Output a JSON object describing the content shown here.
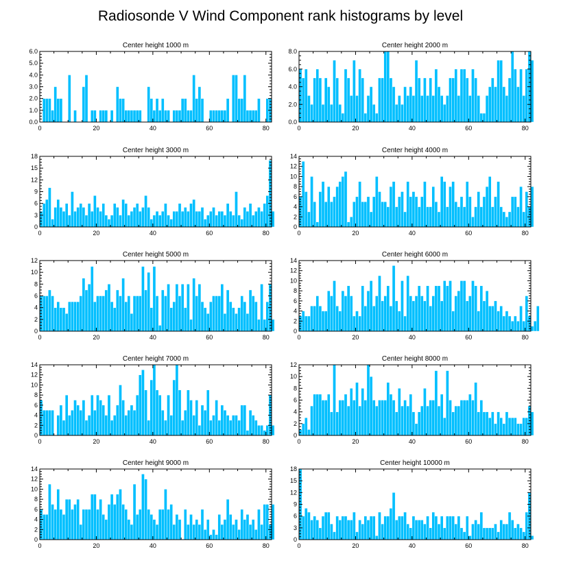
{
  "figure": {
    "title": "Radiosonde V Wind Component rank histograms by level"
  },
  "chart_data": [
    {
      "type": "bar",
      "title": "Center height 1000 m",
      "x_start": 0,
      "xlim": [
        0,
        82
      ],
      "xticks": [
        0,
        20,
        40,
        60,
        80
      ],
      "ylim": [
        0,
        6
      ],
      "yticks": [
        "0.0",
        "1.0",
        "2.0",
        "3.0",
        "4.0",
        "5.0",
        "6.0"
      ],
      "values": [
        0,
        2,
        2,
        2,
        1,
        3,
        2,
        2,
        0,
        0,
        4,
        0,
        1,
        0,
        0,
        3,
        4,
        0,
        1,
        1,
        0,
        1,
        1,
        1,
        0,
        1,
        0,
        3,
        2,
        2,
        1,
        1,
        1,
        1,
        1,
        1,
        0,
        0,
        3,
        2,
        1,
        2,
        1,
        2,
        1,
        1,
        0,
        1,
        1,
        1,
        2,
        2,
        1,
        1,
        4,
        2,
        3,
        2,
        0,
        0,
        1,
        1,
        1,
        1,
        1,
        1,
        2,
        0,
        4,
        4,
        2,
        2,
        4,
        1,
        1,
        1,
        1,
        2,
        0,
        0,
        2,
        2
      ]
    },
    {
      "type": "bar",
      "title": "Center height 2000 m",
      "x_start": 0,
      "xlim": [
        0,
        82
      ],
      "xticks": [
        0,
        20,
        40,
        60,
        80
      ],
      "ylim": [
        0,
        8
      ],
      "yticks": [
        "0.0",
        "2.0",
        "4.0",
        "6.0",
        "8.0"
      ],
      "values": [
        6,
        5,
        6,
        3,
        2,
        5,
        6,
        5,
        2,
        5,
        4,
        2,
        7,
        5,
        2,
        1,
        6,
        5,
        3,
        7,
        3,
        6,
        5,
        1,
        3,
        4,
        2,
        1,
        5,
        5,
        8,
        8,
        5,
        4,
        2,
        3,
        2,
        4,
        3,
        4,
        3,
        7,
        5,
        3,
        5,
        3,
        5,
        3,
        6,
        4,
        3,
        2,
        3,
        5,
        5,
        6,
        3,
        6,
        6,
        5,
        3,
        6,
        5,
        3,
        1,
        1,
        3,
        4,
        5,
        4,
        7,
        7,
        4,
        3,
        5,
        8,
        6,
        4,
        6,
        3,
        6,
        8,
        7
      ]
    },
    {
      "type": "bar",
      "title": "Center height 3000 m",
      "x_start": 0,
      "xlim": [
        0,
        82
      ],
      "xticks": [
        0,
        20,
        40,
        60,
        80
      ],
      "ylim": [
        0,
        18
      ],
      "yticks": [
        "0",
        "3",
        "6",
        "9",
        "12",
        "15",
        "18"
      ],
      "values": [
        4,
        6,
        7,
        10,
        2,
        5,
        7,
        5,
        4,
        6,
        3,
        9,
        4,
        5,
        6,
        5,
        3,
        6,
        4,
        8,
        5,
        4,
        6,
        3,
        2,
        3,
        6,
        5,
        3,
        7,
        6,
        3,
        4,
        5,
        6,
        4,
        5,
        8,
        5,
        2,
        3,
        4,
        3,
        4,
        6,
        3,
        2,
        4,
        4,
        6,
        4,
        5,
        4,
        6,
        7,
        4,
        4,
        5,
        2,
        3,
        4,
        5,
        3,
        4,
        4,
        3,
        6,
        4,
        3,
        9,
        3,
        2,
        5,
        4,
        6,
        3,
        4,
        5,
        4,
        6,
        8,
        17,
        4
      ]
    },
    {
      "type": "bar",
      "title": "Center height 4000 m",
      "x_start": 0,
      "xlim": [
        0,
        82
      ],
      "xticks": [
        0,
        20,
        40,
        60,
        80
      ],
      "ylim": [
        0,
        14
      ],
      "yticks": [
        "0",
        "2",
        "4",
        "6",
        "8",
        "10",
        "12",
        "14"
      ],
      "values": [
        6,
        13,
        7,
        3,
        10,
        5,
        1,
        7,
        9,
        5,
        8,
        5,
        6,
        8,
        9,
        10,
        11,
        1,
        2,
        5,
        6,
        9,
        5,
        5,
        6,
        3,
        6,
        10,
        7,
        5,
        5,
        4,
        8,
        9,
        4,
        6,
        7,
        3,
        9,
        6,
        7,
        6,
        4,
        6,
        9,
        4,
        4,
        8,
        5,
        3,
        10,
        9,
        4,
        8,
        9,
        5,
        4,
        6,
        4,
        9,
        6,
        2,
        4,
        7,
        4,
        6,
        8,
        10,
        4,
        6,
        9,
        4,
        3,
        2,
        3,
        6,
        6,
        4,
        8,
        3,
        7,
        4,
        8
      ]
    },
    {
      "type": "bar",
      "title": "Center height 5000 m",
      "x_start": 0,
      "xlim": [
        0,
        82
      ],
      "xticks": [
        0,
        20,
        40,
        60,
        80
      ],
      "ylim": [
        0,
        12
      ],
      "yticks": [
        "0",
        "2",
        "4",
        "6",
        "8",
        "10",
        "12"
      ],
      "values": [
        6,
        6,
        6,
        7,
        6,
        4,
        5,
        4,
        4,
        3,
        5,
        5,
        5,
        5,
        6,
        9,
        7,
        8,
        11,
        5,
        6,
        6,
        6,
        7,
        8,
        5,
        4,
        7,
        6,
        9,
        5,
        6,
        3,
        6,
        6,
        6,
        11,
        7,
        10,
        4,
        11,
        6,
        1,
        7,
        6,
        8,
        4,
        5,
        8,
        6,
        8,
        4,
        8,
        2,
        9,
        6,
        8,
        5,
        4,
        3,
        5,
        6,
        6,
        6,
        8,
        3,
        7,
        5,
        4,
        3,
        4,
        6,
        5,
        3,
        7,
        6,
        5,
        2,
        8,
        2,
        5,
        8,
        2
      ]
    },
    {
      "type": "bar",
      "title": "Center height 6000 m",
      "x_start": 0,
      "xlim": [
        0,
        82
      ],
      "xticks": [
        0,
        20,
        40,
        60,
        80
      ],
      "ylim": [
        0,
        14
      ],
      "yticks": [
        "0",
        "2",
        "4",
        "6",
        "8",
        "10",
        "12",
        "14"
      ],
      "values": [
        3,
        4,
        3,
        3,
        5,
        5,
        7,
        5,
        4,
        4,
        8,
        7,
        10,
        5,
        4,
        8,
        7,
        9,
        7,
        3,
        4,
        3,
        9,
        5,
        8,
        10,
        5,
        7,
        11,
        6,
        7,
        9,
        5,
        13,
        6,
        4,
        10,
        3,
        11,
        7,
        6,
        7,
        9,
        7,
        6,
        9,
        5,
        7,
        9,
        9,
        6,
        10,
        9,
        10,
        4,
        7,
        8,
        10,
        10,
        6,
        7,
        10,
        9,
        4,
        9,
        6,
        8,
        5,
        5,
        6,
        4,
        5,
        3,
        4,
        3,
        2,
        3,
        2,
        5,
        2,
        7,
        3,
        1,
        2,
        5
      ]
    },
    {
      "type": "bar",
      "title": "Center height 7000 m",
      "x_start": 0,
      "xlim": [
        0,
        82
      ],
      "xticks": [
        0,
        20,
        40,
        60,
        80
      ],
      "ylim": [
        0,
        14
      ],
      "yticks": [
        "0",
        "2",
        "4",
        "6",
        "8",
        "10",
        "12",
        "14"
      ],
      "values": [
        7,
        5,
        5,
        5,
        5,
        0,
        4,
        6,
        3,
        8,
        4,
        5,
        7,
        6,
        5,
        7,
        3,
        4,
        8,
        5,
        8,
        7,
        6,
        4,
        8,
        3,
        4,
        6,
        10,
        7,
        4,
        5,
        6,
        5,
        8,
        12,
        13,
        9,
        3,
        11,
        14,
        9,
        8,
        5,
        3,
        8,
        4,
        11,
        14,
        9,
        3,
        5,
        9,
        7,
        4,
        7,
        2,
        6,
        5,
        9,
        3,
        4,
        7,
        3,
        6,
        5,
        4,
        3,
        4,
        4,
        3,
        6,
        6,
        1,
        5,
        4,
        3,
        2,
        2,
        1,
        2,
        8,
        2
      ]
    },
    {
      "type": "bar",
      "title": "Center height 8000 m",
      "x_start": 0,
      "xlim": [
        0,
        82
      ],
      "xticks": [
        0,
        20,
        40,
        60,
        80
      ],
      "ylim": [
        0,
        12
      ],
      "yticks": [
        "0",
        "2",
        "4",
        "6",
        "8",
        "10",
        "12"
      ],
      "values": [
        1,
        2,
        3,
        1,
        5,
        7,
        7,
        7,
        6,
        6,
        7,
        4,
        12,
        4,
        6,
        6,
        7,
        5,
        8,
        6,
        9,
        5,
        8,
        6,
        12,
        10,
        6,
        5,
        6,
        6,
        6,
        9,
        7,
        6,
        4,
        8,
        5,
        6,
        5,
        7,
        4,
        2,
        4,
        5,
        8,
        5,
        6,
        6,
        11,
        5,
        7,
        3,
        11,
        6,
        4,
        5,
        5,
        6,
        6,
        6,
        7,
        6,
        9,
        4,
        6,
        4,
        4,
        3,
        4,
        2,
        4,
        3,
        2,
        4,
        3,
        3,
        3,
        2,
        2,
        3,
        3,
        5,
        4
      ]
    },
    {
      "type": "bar",
      "title": "Center height 9000 m",
      "x_start": 0,
      "xlim": [
        0,
        82
      ],
      "xticks": [
        0,
        20,
        40,
        60,
        80
      ],
      "ylim": [
        0,
        14
      ],
      "yticks": [
        "0",
        "2",
        "4",
        "6",
        "8",
        "10",
        "12",
        "14"
      ],
      "values": [
        6,
        5,
        5,
        11,
        7,
        6,
        10,
        6,
        5,
        8,
        8,
        6,
        7,
        8,
        3,
        6,
        6,
        6,
        9,
        9,
        6,
        8,
        5,
        4,
        7,
        9,
        7,
        9,
        10,
        7,
        6,
        4,
        3,
        11,
        5,
        6,
        13,
        12,
        6,
        5,
        4,
        3,
        6,
        6,
        10,
        6,
        7,
        3,
        5,
        4,
        0,
        6,
        3,
        5,
        3,
        4,
        3,
        6,
        2,
        4,
        1,
        2,
        1,
        5,
        3,
        4,
        8,
        5,
        3,
        4,
        2,
        6,
        4,
        5,
        3,
        4,
        2,
        6,
        3,
        7,
        7,
        3,
        7
      ]
    },
    {
      "type": "bar",
      "title": "Center height 10000 m",
      "x_start": 0,
      "xlim": [
        0,
        82
      ],
      "xticks": [
        0,
        20,
        40,
        60,
        80
      ],
      "ylim": [
        0,
        18
      ],
      "yticks": [
        "0",
        "3",
        "6",
        "9",
        "12",
        "15",
        "18"
      ],
      "values": [
        18,
        6,
        8,
        7,
        5,
        6,
        5,
        3,
        6,
        7,
        7,
        4,
        2,
        6,
        5,
        6,
        6,
        5,
        5,
        7,
        2,
        5,
        4,
        6,
        5,
        6,
        6,
        1,
        7,
        4,
        6,
        6,
        8,
        12,
        5,
        6,
        6,
        7,
        4,
        3,
        6,
        5,
        5,
        5,
        4,
        6,
        3,
        7,
        6,
        4,
        6,
        3,
        6,
        6,
        6,
        4,
        6,
        3,
        2,
        6,
        1,
        4,
        5,
        4,
        7,
        3,
        3,
        3,
        3,
        4,
        2,
        5,
        4,
        4,
        7,
        5,
        3,
        4,
        3,
        2,
        7,
        12,
        1
      ]
    }
  ]
}
